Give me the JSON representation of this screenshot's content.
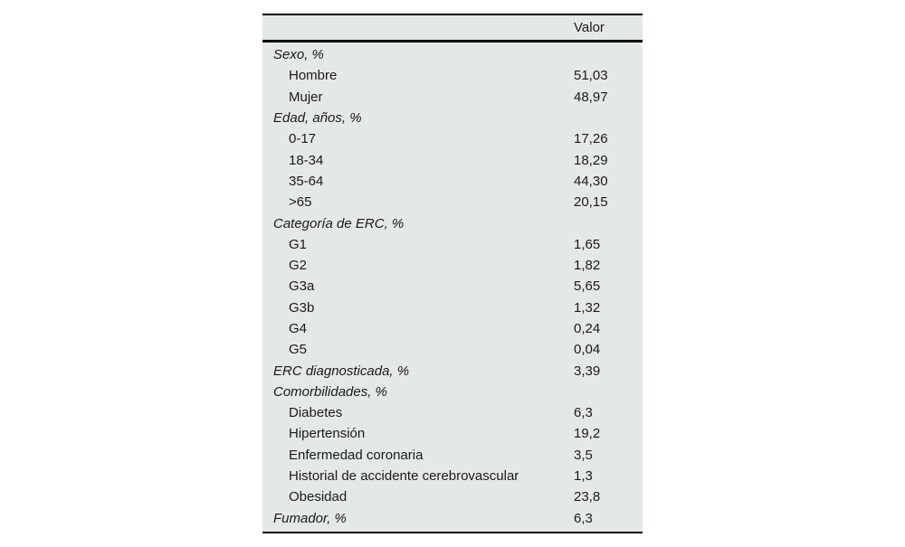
{
  "colors": {
    "table_bg": "#e5e8e9",
    "text": "#1a1a1a",
    "rule": "#000000"
  },
  "table": {
    "header": {
      "label": "",
      "value_column_label": "Valor"
    },
    "rows": [
      {
        "type": "section",
        "label": "Sexo, %",
        "value": ""
      },
      {
        "type": "item",
        "label": "Hombre",
        "value": "51,03"
      },
      {
        "type": "item",
        "label": "Mujer",
        "value": "48,97"
      },
      {
        "type": "section",
        "label": "Edad, años, %",
        "value": ""
      },
      {
        "type": "item",
        "label": "0-17",
        "value": "17,26"
      },
      {
        "type": "item",
        "label": "18-34",
        "value": "18,29"
      },
      {
        "type": "item",
        "label": "35-64",
        "value": "44,30"
      },
      {
        "type": "item",
        "label": ">65",
        "value": "20,15"
      },
      {
        "type": "section",
        "label": "Categoría de ERC, %",
        "value": ""
      },
      {
        "type": "item",
        "label": "G1",
        "value": "1,65"
      },
      {
        "type": "item",
        "label": "G2",
        "value": "1,82"
      },
      {
        "type": "item",
        "label": "G3a",
        "value": "5,65"
      },
      {
        "type": "item",
        "label": "G3b",
        "value": "1,32"
      },
      {
        "type": "item",
        "label": "G4",
        "value": "0,24"
      },
      {
        "type": "item",
        "label": "G5",
        "value": "0,04"
      },
      {
        "type": "section",
        "label": "ERC diagnosticada, %",
        "value": "3,39"
      },
      {
        "type": "section",
        "label": "Comorbilidades, %",
        "value": ""
      },
      {
        "type": "item",
        "label": "Diabetes",
        "value": "6,3"
      },
      {
        "type": "item",
        "label": "Hipertensión",
        "value": "19,2"
      },
      {
        "type": "item",
        "label": "Enfermedad coronaria",
        "value": "3,5"
      },
      {
        "type": "item",
        "label": "Historial de accidente cerebrovascular",
        "value": "1,3"
      },
      {
        "type": "item",
        "label": "Obesidad",
        "value": "23,8"
      },
      {
        "type": "section",
        "label": "Fumador, %",
        "value": "6,3"
      }
    ]
  }
}
